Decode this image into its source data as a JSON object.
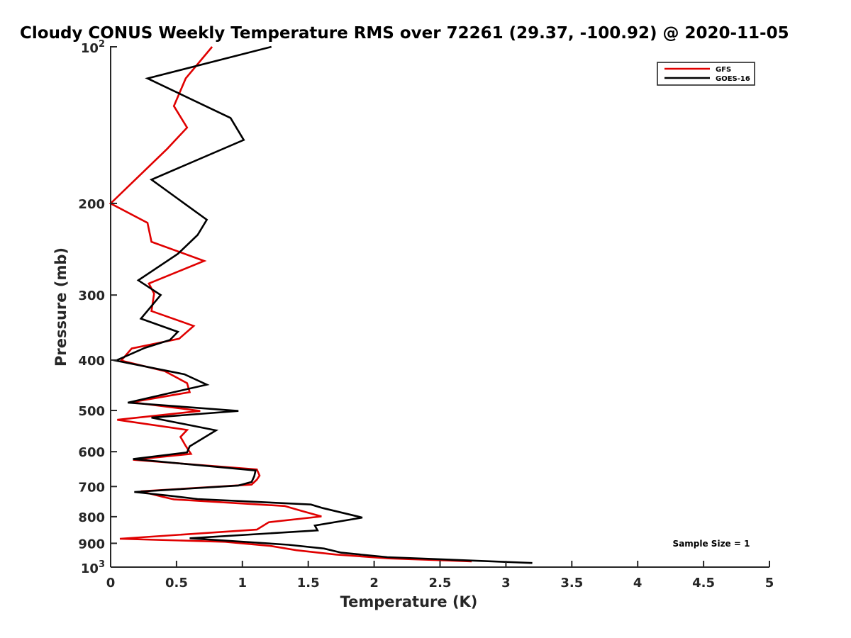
{
  "chart_data": {
    "type": "line",
    "title": "Cloudy CONUS Weekly Temperature RMS over 72261 (29.37, -100.92) @ 2020-11-05",
    "xlabel": "Temperature (K)",
    "ylabel": "Pressure (mb)",
    "xlim": [
      0,
      5
    ],
    "ylim": [
      100,
      1000
    ],
    "y_scale": "log",
    "y_reversed": true,
    "grid": false,
    "legend_position": "top-right",
    "x_ticks": [
      "0",
      "0.5",
      "1",
      "1.5",
      "2",
      "2.5",
      "3",
      "3.5",
      "4",
      "4.5",
      "5"
    ],
    "y_ticks": [
      {
        "value": 100,
        "base": "10",
        "exp": "2"
      },
      {
        "value": 200,
        "label": "200"
      },
      {
        "value": 300,
        "label": "300"
      },
      {
        "value": 400,
        "label": "400"
      },
      {
        "value": 500,
        "label": "500"
      },
      {
        "value": 600,
        "label": "600"
      },
      {
        "value": 700,
        "label": "700"
      },
      {
        "value": 800,
        "label": "800"
      },
      {
        "value": 900,
        "label": "900"
      },
      {
        "value": 1000,
        "base": "10",
        "exp": "3"
      }
    ],
    "series": [
      {
        "name": "GFS",
        "color": "#e00000",
        "points": [
          [
            0.77,
            100
          ],
          [
            0.57,
            115
          ],
          [
            0.48,
            130
          ],
          [
            0.58,
            143
          ],
          [
            0.43,
            157
          ],
          [
            0.0,
            200
          ],
          [
            0.28,
            218
          ],
          [
            0.31,
            237
          ],
          [
            0.71,
            258
          ],
          [
            0.29,
            285
          ],
          [
            0.33,
            298
          ],
          [
            0.31,
            322
          ],
          [
            0.63,
            344
          ],
          [
            0.52,
            364
          ],
          [
            0.16,
            380
          ],
          [
            0.08,
            401
          ],
          [
            0.41,
            420
          ],
          [
            0.58,
            443
          ],
          [
            0.6,
            461
          ],
          [
            0.16,
            482
          ],
          [
            0.68,
            501
          ],
          [
            0.05,
            521
          ],
          [
            0.58,
            545
          ],
          [
            0.53,
            562
          ],
          [
            0.57,
            585
          ],
          [
            0.61,
            606
          ],
          [
            0.17,
            622
          ],
          [
            1.11,
            649
          ],
          [
            1.13,
            667
          ],
          [
            1.11,
            679
          ],
          [
            1.07,
            694
          ],
          [
            0.23,
            715
          ],
          [
            0.39,
            732
          ],
          [
            0.48,
            741
          ],
          [
            0.67,
            746
          ],
          [
            1.32,
            763
          ],
          [
            1.45,
            780
          ],
          [
            1.6,
            799
          ],
          [
            1.2,
            820
          ],
          [
            1.11,
            847
          ],
          [
            0.07,
            882
          ],
          [
            0.87,
            894
          ],
          [
            1.22,
            911
          ],
          [
            1.41,
            928
          ],
          [
            1.71,
            946
          ],
          [
            2.11,
            962
          ],
          [
            2.74,
            975
          ]
        ]
      },
      {
        "name": "GOES-16",
        "color": "#000000",
        "points": [
          [
            1.22,
            100
          ],
          [
            0.28,
            115
          ],
          [
            0.91,
            137
          ],
          [
            1.01,
            151
          ],
          [
            0.31,
            180
          ],
          [
            0.73,
            215
          ],
          [
            0.66,
            230
          ],
          [
            0.51,
            250
          ],
          [
            0.21,
            281
          ],
          [
            0.38,
            300
          ],
          [
            0.23,
            333
          ],
          [
            0.51,
            353
          ],
          [
            0.45,
            366
          ],
          [
            0.26,
            379
          ],
          [
            0.04,
            401
          ],
          [
            0.56,
            426
          ],
          [
            0.73,
            446
          ],
          [
            0.13,
            483
          ],
          [
            0.97,
            501
          ],
          [
            0.31,
            516
          ],
          [
            0.8,
            546
          ],
          [
            0.6,
            586
          ],
          [
            0.58,
            602
          ],
          [
            0.17,
            620
          ],
          [
            1.1,
            652
          ],
          [
            1.09,
            669
          ],
          [
            1.07,
            686
          ],
          [
            0.97,
            697
          ],
          [
            0.18,
            717
          ],
          [
            0.44,
            729
          ],
          [
            0.66,
            740
          ],
          [
            1.52,
            758
          ],
          [
            1.61,
            770
          ],
          [
            1.91,
            803
          ],
          [
            1.55,
            832
          ],
          [
            1.57,
            850
          ],
          [
            0.6,
            880
          ],
          [
            1.35,
            906
          ],
          [
            1.62,
            921
          ],
          [
            1.75,
            938
          ],
          [
            2.1,
            957
          ],
          [
            3.2,
            982
          ]
        ]
      }
    ],
    "annotation": "Sample Size = 1"
  }
}
